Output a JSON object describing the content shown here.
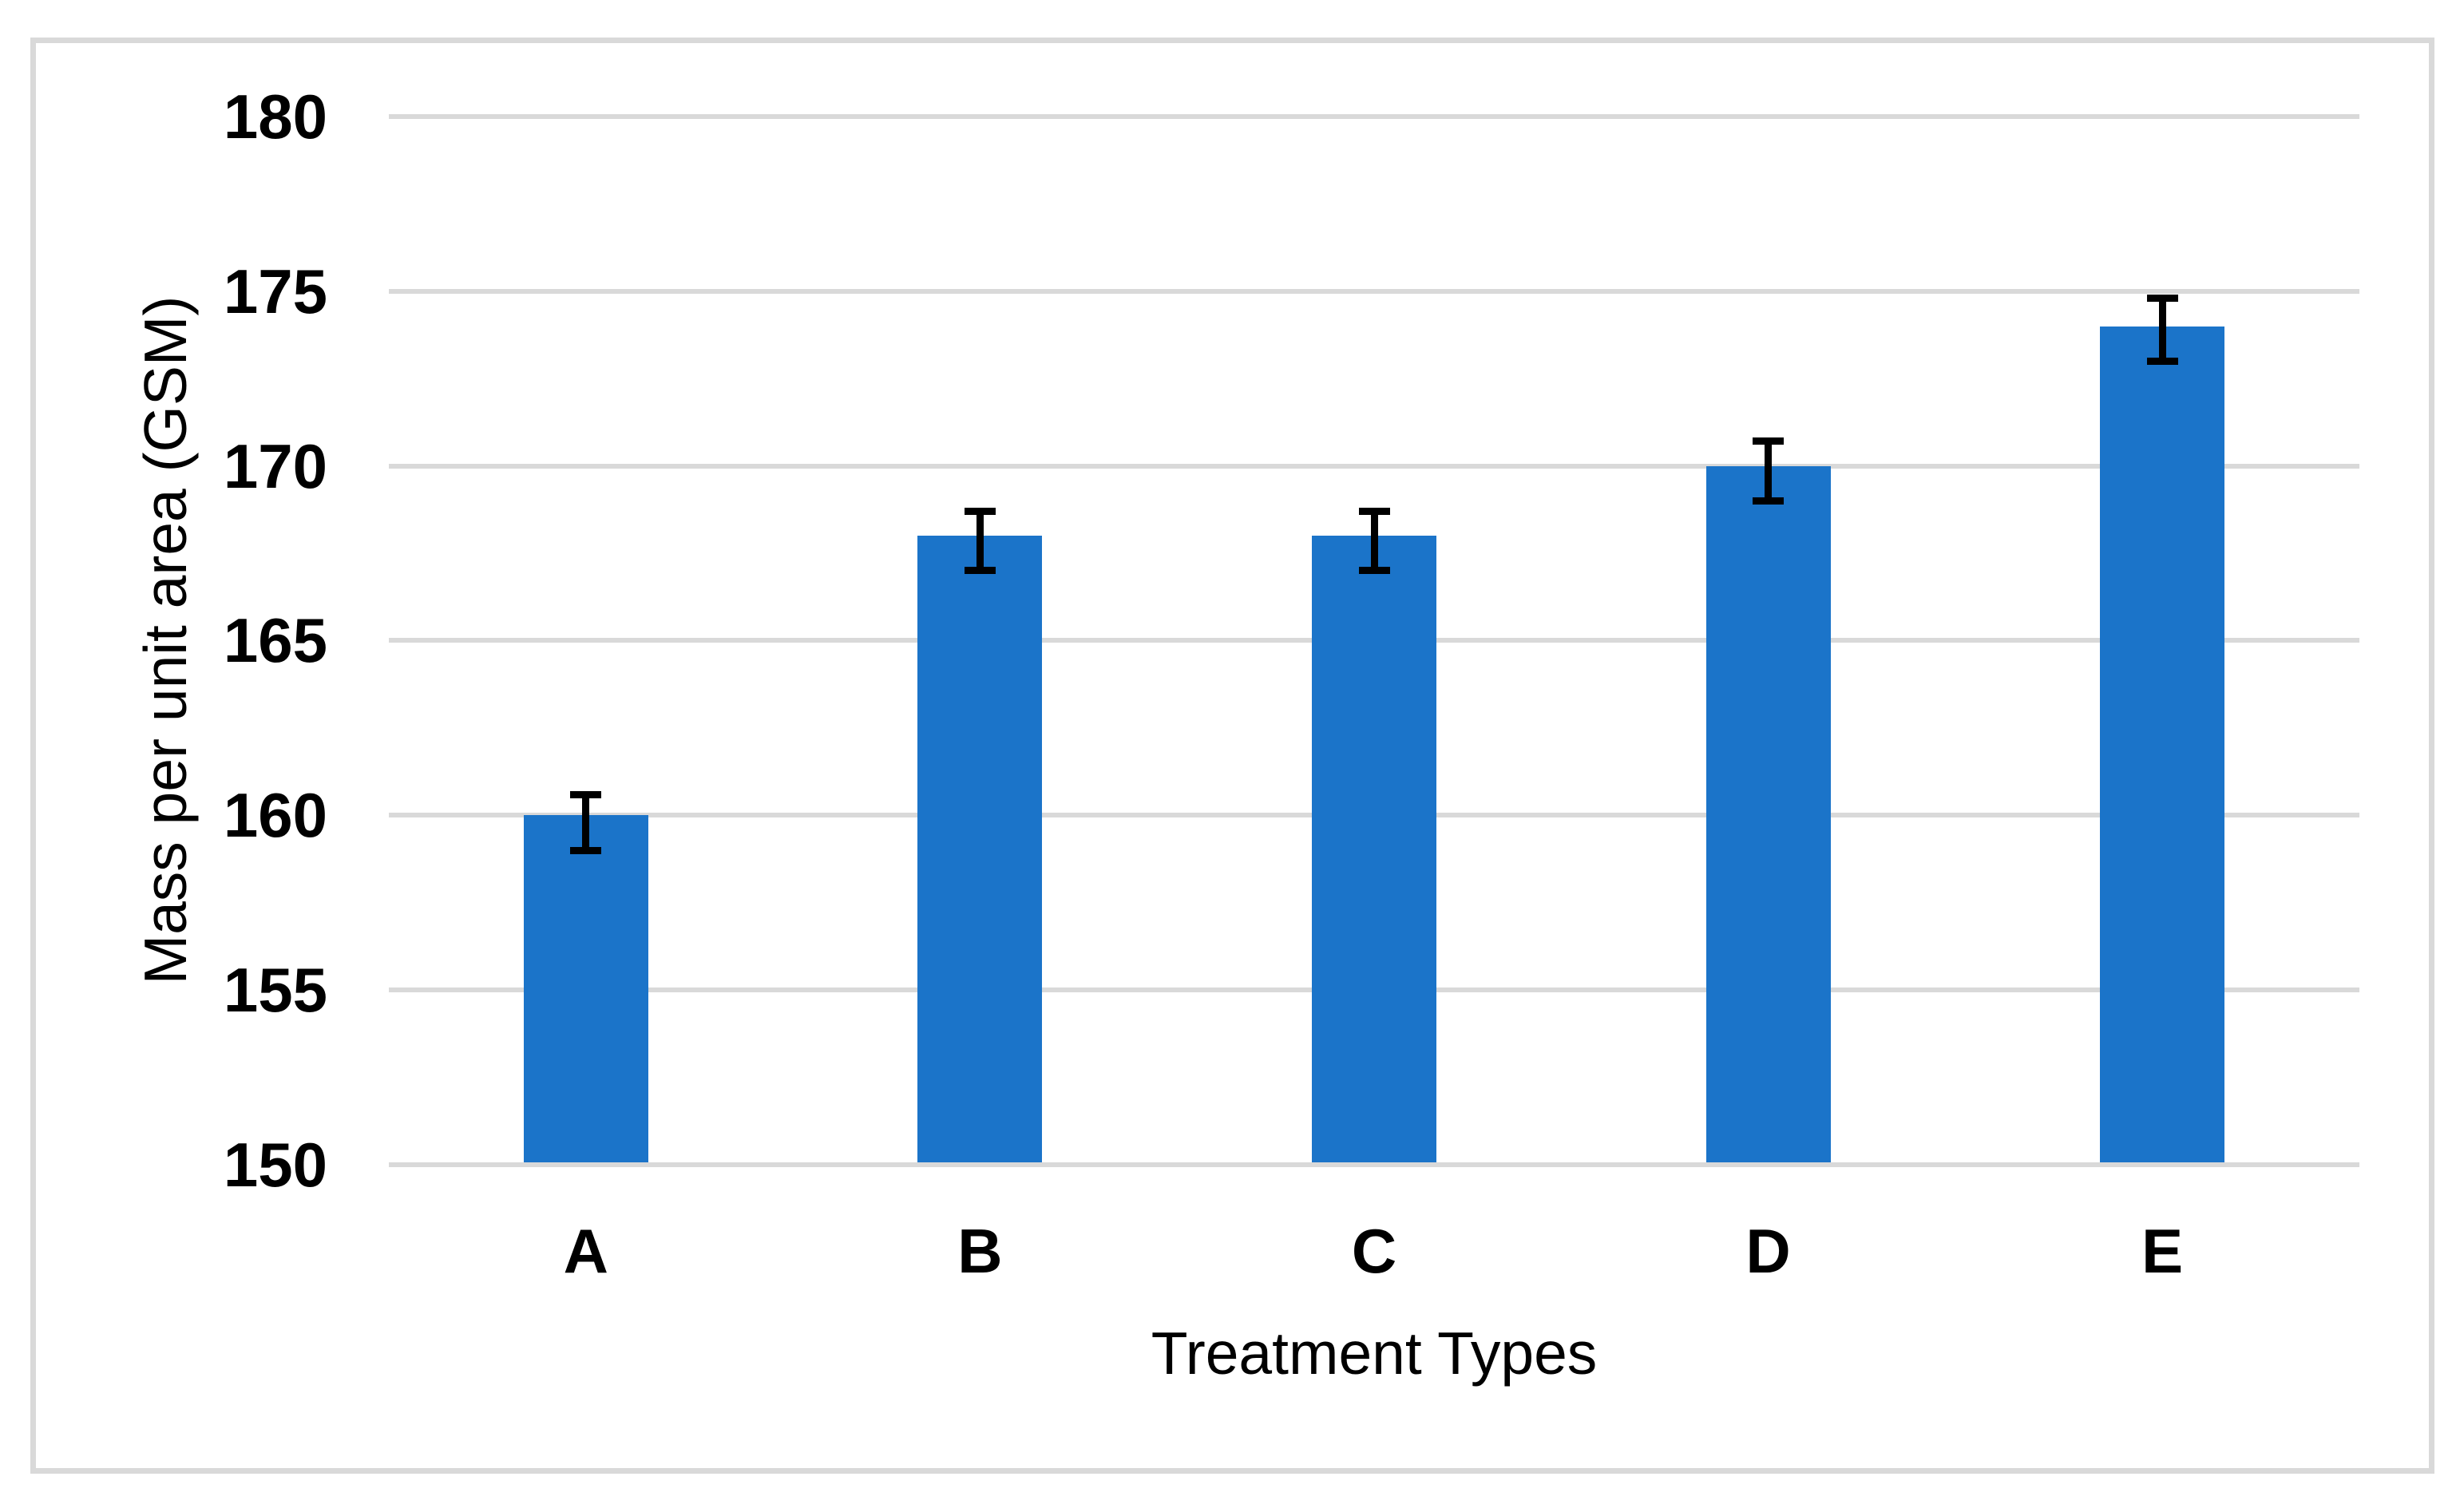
{
  "chart_data": {
    "type": "bar",
    "title": "",
    "xlabel": "Treatment Types",
    "ylabel": "Mass per unit area (GSM)",
    "categories": [
      "A",
      "B",
      "C",
      "D",
      "E"
    ],
    "values": [
      160,
      168,
      168,
      170,
      174
    ],
    "errors_plus": [
      0.6,
      0.7,
      0.7,
      0.7,
      0.8
    ],
    "errors_minus": [
      1.0,
      1.0,
      1.0,
      1.0,
      1.0
    ],
    "ylim": [
      150,
      180
    ],
    "ytick_step": 5,
    "yticks": [
      150,
      155,
      160,
      165,
      170,
      175,
      180
    ],
    "grid": true,
    "legend": false,
    "colors": {
      "bar": "#1b74c9",
      "gridline": "#d9d9d9",
      "frame_border": "#d9d9d9",
      "axis_line": "#d9d9d9",
      "error_bar": "#000000",
      "text": "#000000"
    }
  }
}
